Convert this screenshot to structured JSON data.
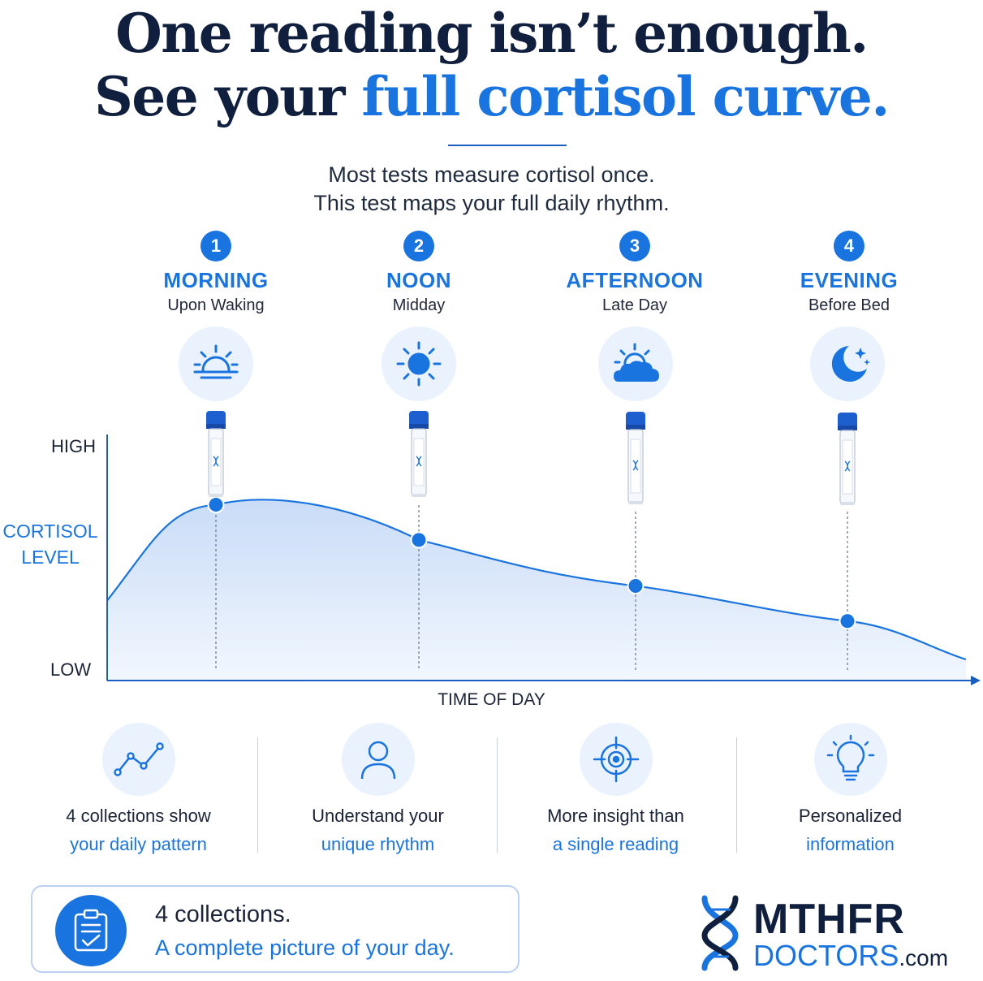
{
  "headline": {
    "line1": "One reading isn’t enough.",
    "line2_prefix": "See your ",
    "line2_accent": "full cortisol curve."
  },
  "subtitle": {
    "line1": "Most tests measure cortisol once.",
    "line2": "This test maps your full daily rhythm."
  },
  "steps": [
    {
      "number": "1",
      "title": "MORNING",
      "caption": "Upon Waking",
      "icon": "sunrise-icon"
    },
    {
      "number": "2",
      "title": "NOON",
      "caption": "Midday",
      "icon": "sun-icon"
    },
    {
      "number": "3",
      "title": "AFTERNOON",
      "caption": "Late Day",
      "icon": "sun-behind-cloud-icon"
    },
    {
      "number": "4",
      "title": "EVENING",
      "caption": "Before Bed",
      "icon": "moon-stars-icon"
    }
  ],
  "chart": {
    "y_high": "HIGH",
    "y_low": "LOW",
    "y_label_line1": "CORTISOL",
    "y_label_line2": "LEVEL",
    "x_label": "TIME OF DAY"
  },
  "chart_data": {
    "type": "area",
    "x": [
      "MORNING",
      "NOON",
      "AFTERNOON",
      "EVENING"
    ],
    "series": [
      {
        "values": [
          0.65,
          0.52,
          0.35,
          0.22
        ]
      }
    ],
    "ylim": [
      0,
      1
    ],
    "y_ticks": [
      "LOW",
      "HIGH"
    ],
    "xlabel": "TIME OF DAY",
    "ylabel": "CORTISOL LEVEL",
    "grid": false
  },
  "features": [
    {
      "line1": "4 collections show",
      "line2": "your daily pattern",
      "icon": "trend-line-icon"
    },
    {
      "line1": "Understand your",
      "line2": "unique rhythm",
      "icon": "person-icon"
    },
    {
      "line1": "More insight than",
      "line2": "a single reading",
      "icon": "target-icon"
    },
    {
      "line1": "Personalized",
      "line2": "information",
      "icon": "lightbulb-icon"
    }
  ],
  "callout": {
    "line1": "4 collections.",
    "line2": "A complete picture of your day.",
    "icon": "clipboard-check-icon"
  },
  "logo": {
    "line1": "MTHFR",
    "line2": "DOCTORS",
    "suffix": ".com",
    "icon": "dna-icon"
  },
  "colors": {
    "accent": "#1a74df",
    "navy": "#0f1f3d",
    "light_fill": "#eaf2fd"
  }
}
